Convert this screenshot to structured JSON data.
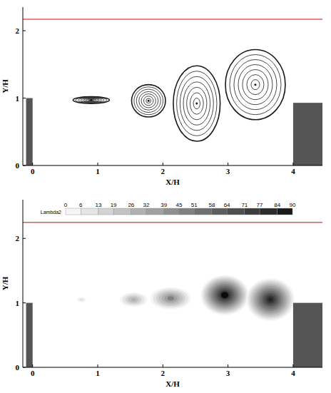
{
  "chart_data": [
    {
      "type": "streamline",
      "x_label": "X/H",
      "y_label": "Y/H",
      "xlim": [
        -0.15,
        4.45
      ],
      "ylim": [
        0,
        2.35
      ],
      "xticks": [
        0,
        1,
        2,
        3,
        4
      ],
      "yticks": [
        0,
        1,
        2
      ],
      "lines": [
        {
          "y": 2.17,
          "color": "#e05a5a"
        }
      ],
      "blocks": [
        {
          "x0": -0.1,
          "x1": 0,
          "y0": 0,
          "y1": 1
        },
        {
          "x0": 4.0,
          "x1": 4.45,
          "y0": 0,
          "y1": 0.93
        }
      ],
      "vortices": [
        {
          "x": 0.9,
          "y": 0.97,
          "rx": 0.28,
          "ry": 0.05
        },
        {
          "x": 1.78,
          "y": 0.96,
          "rx": 0.26,
          "ry": 0.24
        },
        {
          "x": 2.52,
          "y": 0.92,
          "rx": 0.36,
          "ry": 0.56
        },
        {
          "x": 3.42,
          "y": 1.2,
          "rx": 0.46,
          "ry": 0.52
        }
      ],
      "color": "#1a1a1a"
    },
    {
      "type": "contour",
      "x_label": "X/H",
      "y_label": "Y/H",
      "xlim": [
        -0.15,
        4.45
      ],
      "ylim": [
        0,
        2.6
      ],
      "xticks": [
        0,
        1,
        2,
        3,
        4
      ],
      "yticks": [
        0,
        1,
        2
      ],
      "lines": [
        {
          "y": 2.25,
          "color": "#e05a5a"
        }
      ],
      "blocks": [
        {
          "x0": -0.1,
          "x1": 0,
          "y0": 0,
          "y1": 1
        },
        {
          "x0": 4.0,
          "x1": 4.45,
          "y0": 0,
          "y1": 1.0
        }
      ],
      "color_label": "Lambda2",
      "color_range": [
        0,
        90
      ],
      "color_ticks": [
        0,
        6,
        13,
        19,
        26,
        32,
        39,
        45,
        51,
        58,
        64,
        71,
        77,
        84,
        90
      ],
      "blobs": [
        {
          "x": 0.75,
          "y": 1.05,
          "rx": 0.06,
          "ry": 0.03,
          "value": 10
        },
        {
          "x": 1.55,
          "y": 1.05,
          "rx": 0.2,
          "ry": 0.1,
          "value": 30
        },
        {
          "x": 2.12,
          "y": 1.07,
          "rx": 0.3,
          "ry": 0.16,
          "value": 45
        },
        {
          "x": 2.95,
          "y": 1.12,
          "rx": 0.36,
          "ry": 0.3,
          "value": 90
        },
        {
          "x": 3.65,
          "y": 1.05,
          "rx": 0.36,
          "ry": 0.32,
          "value": 85
        }
      ]
    }
  ]
}
